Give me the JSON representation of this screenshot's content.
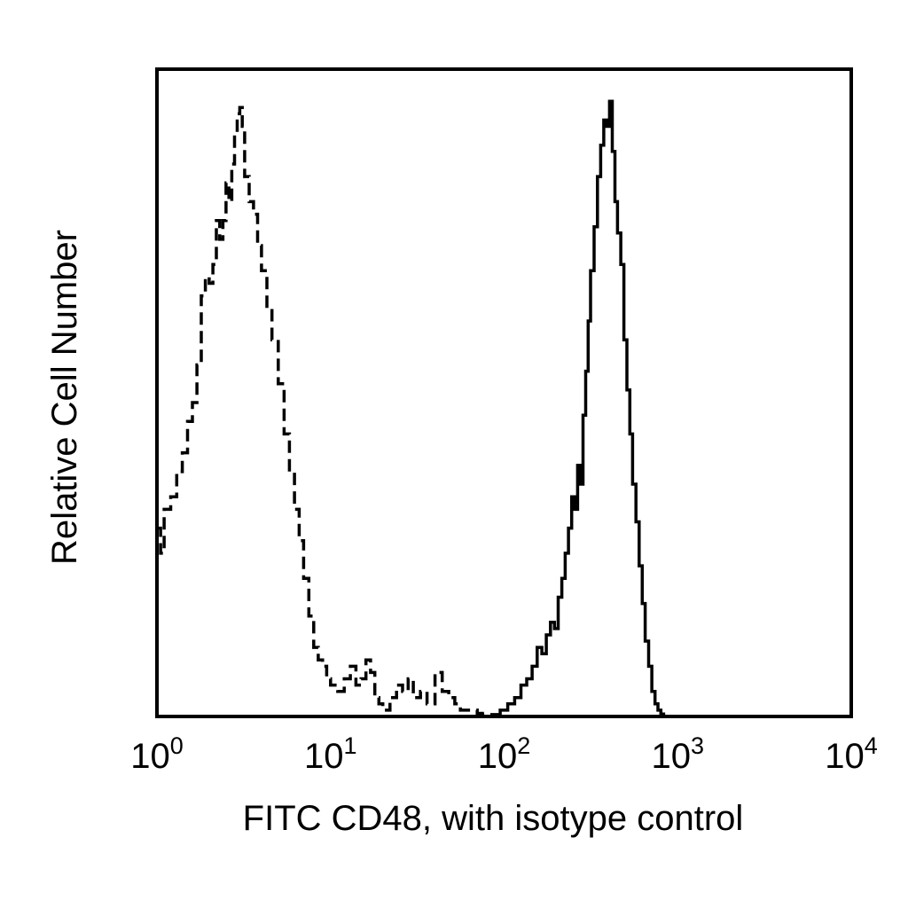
{
  "chart_data": {
    "type": "line",
    "title": "",
    "xlabel": "FITC CD48, with isotype control",
    "ylabel": "Relative Cell Number",
    "x_scale": "log",
    "xlim": [
      1,
      10000
    ],
    "ylim": [
      0,
      100
    ],
    "grid": false,
    "x_ticks": [
      {
        "base": "10",
        "exp": "0",
        "value": 1
      },
      {
        "base": "10",
        "exp": "1",
        "value": 10
      },
      {
        "base": "10",
        "exp": "2",
        "value": 100
      },
      {
        "base": "10",
        "exp": "3",
        "value": 1000
      },
      {
        "base": "10",
        "exp": "4",
        "value": 10000
      }
    ],
    "series": [
      {
        "line_style": "dashed",
        "color": "#000000",
        "x": [
          1.0,
          1.05,
          1.1,
          1.2,
          1.3,
          1.4,
          1.5,
          1.6,
          1.7,
          1.8,
          1.9,
          2.0,
          2.1,
          2.2,
          2.3,
          2.4,
          2.5,
          2.6,
          2.7,
          2.8,
          2.9,
          3.0,
          3.1,
          3.2,
          3.4,
          3.6,
          3.8,
          4.0,
          4.3,
          4.6,
          5.0,
          5.4,
          5.8,
          6.2,
          6.6,
          7.0,
          7.5,
          8.0,
          8.5,
          9.0,
          9.5,
          10.0,
          11.0,
          12.0,
          13.0,
          14.0,
          15.0,
          16.0,
          17.0,
          18.0,
          19.0,
          20.0,
          22.0,
          24.0,
          26.0,
          28.0,
          30.0,
          33.0,
          36.0,
          40.0,
          44.0,
          48.0,
          52.0,
          56.0,
          60.0,
          65.0,
          70.0,
          75.0,
          80.0
        ],
        "values": [
          30,
          26,
          33,
          35,
          39,
          42,
          47,
          50,
          56,
          67,
          70,
          69,
          72,
          79,
          76,
          79,
          85,
          82,
          88,
          93,
          96,
          97,
          94,
          86,
          82,
          80,
          75,
          71,
          65,
          60,
          53,
          45,
          39,
          33,
          28,
          22,
          16,
          11,
          9,
          8,
          6,
          5,
          4,
          6,
          8,
          5,
          6,
          9,
          7,
          3,
          2,
          1,
          3,
          5,
          4,
          6,
          3,
          4,
          2,
          7,
          4,
          3,
          2,
          1,
          1,
          1,
          0.5,
          0.3,
          0
        ]
      },
      {
        "line_style": "solid",
        "color": "#000000",
        "x": [
          75,
          85,
          95,
          105,
          115,
          125,
          135,
          145,
          155,
          165,
          175,
          185,
          195,
          205,
          215,
          225,
          235,
          245,
          255,
          265,
          275,
          285,
          295,
          305,
          315,
          330,
          345,
          360,
          375,
          390,
          405,
          420,
          435,
          450,
          470,
          490,
          510,
          530,
          550,
          575,
          600,
          625,
          650,
          680,
          710,
          740,
          770,
          800,
          830
        ],
        "values": [
          0,
          0.3,
          1,
          2,
          3,
          5,
          6,
          8,
          11,
          10,
          13,
          15,
          14,
          19,
          22,
          26,
          30,
          35,
          33,
          40,
          37,
          48,
          55,
          63,
          71,
          78,
          86,
          91,
          95,
          94,
          98,
          90,
          82,
          77,
          72,
          60,
          52,
          45,
          37,
          31,
          24,
          18,
          12,
          8,
          4,
          2,
          1,
          0.4,
          0
        ]
      }
    ]
  }
}
